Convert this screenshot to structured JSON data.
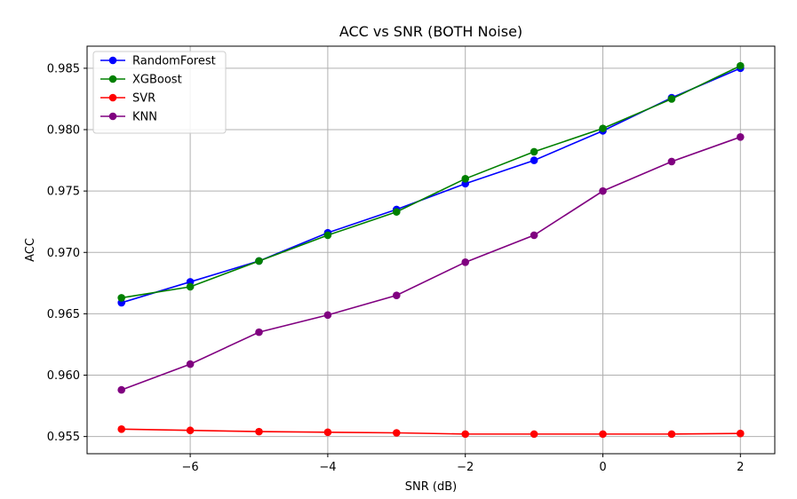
{
  "chart_data": {
    "type": "line",
    "title": "ACC vs SNR (BOTH Noise)",
    "xlabel": "SNR (dB)",
    "ylabel": "ACC",
    "x": [
      -7,
      -6,
      -5,
      -4,
      -3,
      -2,
      -1,
      0,
      1,
      2
    ],
    "xlim": [
      -7.5,
      2.5
    ],
    "ylim": [
      0.9536,
      0.9868
    ],
    "xticks": [
      -6,
      -4,
      -2,
      0,
      2
    ],
    "xtick_labels": [
      "−6",
      "−4",
      "−2",
      "0",
      "2"
    ],
    "yticks": [
      0.955,
      0.96,
      0.965,
      0.97,
      0.975,
      0.98,
      0.985
    ],
    "ytick_labels": [
      "0.955",
      "0.960",
      "0.965",
      "0.970",
      "0.975",
      "0.980",
      "0.985"
    ],
    "grid": true,
    "legend_position": "top-left",
    "series": [
      {
        "name": "RandomForest",
        "color": "#0000ff",
        "values": [
          0.9659,
          0.9676,
          0.9693,
          0.9716,
          0.9735,
          0.9756,
          0.9775,
          0.9799,
          0.9826,
          0.985
        ]
      },
      {
        "name": "XGBoost",
        "color": "#008000",
        "values": [
          0.9663,
          0.9672,
          0.9693,
          0.9714,
          0.9733,
          0.976,
          0.9782,
          0.9801,
          0.9825,
          0.9852
        ]
      },
      {
        "name": "SVR",
        "color": "#ff0000",
        "values": [
          0.9556,
          0.9555,
          0.9554,
          0.95535,
          0.9553,
          0.9552,
          0.9552,
          0.9552,
          0.9552,
          0.95525
        ]
      },
      {
        "name": "KNN",
        "color": "#800080",
        "values": [
          0.9588,
          0.9609,
          0.9635,
          0.9649,
          0.9665,
          0.9692,
          0.9714,
          0.975,
          0.9774,
          0.9794
        ]
      }
    ]
  }
}
